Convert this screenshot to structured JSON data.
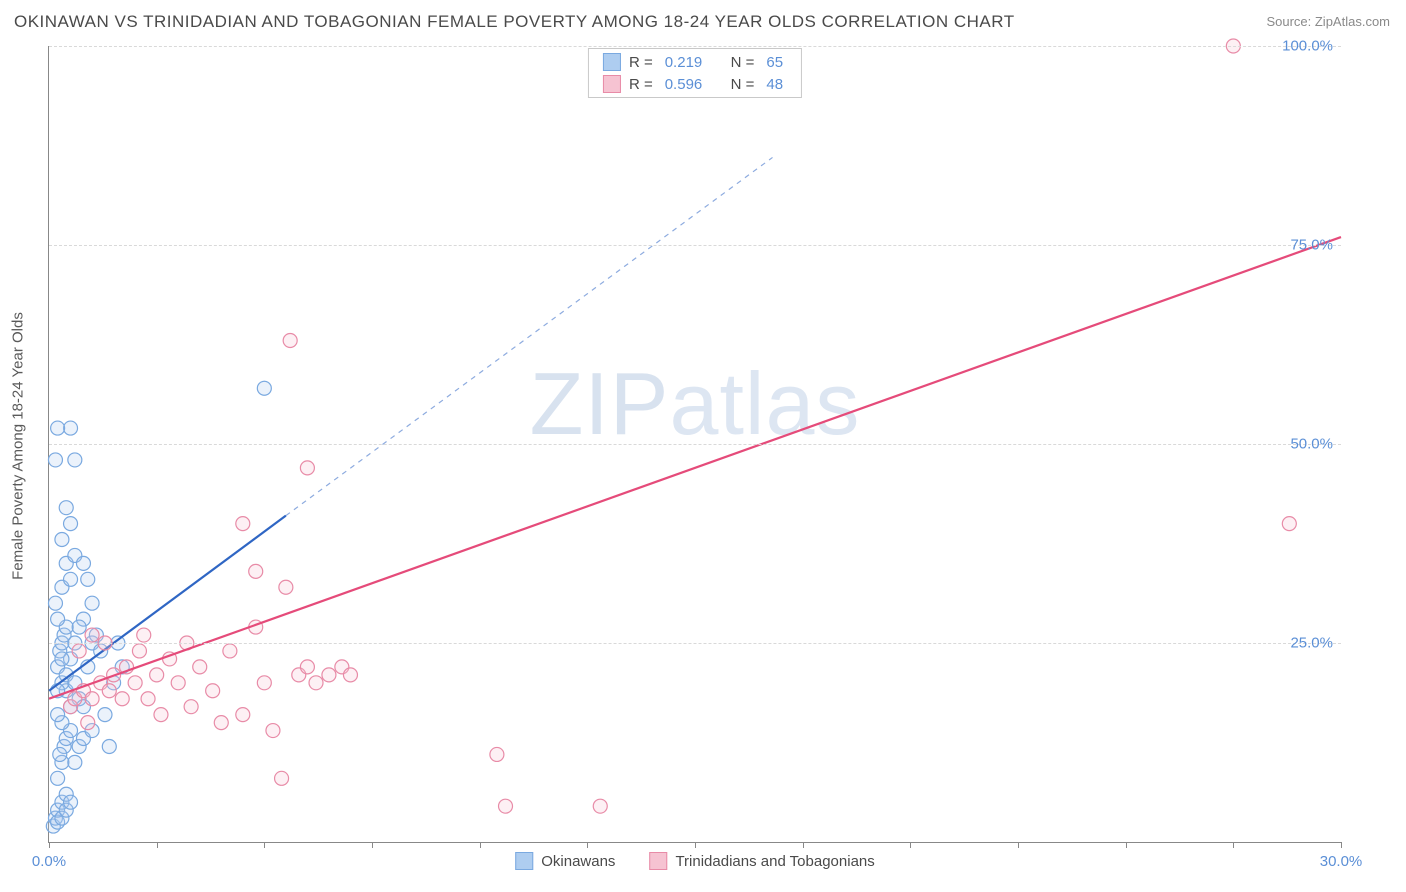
{
  "title": "OKINAWAN VS TRINIDADIAN AND TOBAGONIAN FEMALE POVERTY AMONG 18-24 YEAR OLDS CORRELATION CHART",
  "source": "Source: ZipAtlas.com",
  "watermark_a": "ZIP",
  "watermark_b": "atlas",
  "chart": {
    "type": "scatter",
    "xlim": [
      0,
      30
    ],
    "ylim": [
      0,
      100
    ],
    "xlabel": "",
    "ylabel": "Female Poverty Among 18-24 Year Olds",
    "background_color": "#ffffff",
    "grid_color": "#d9d9d9",
    "tick_color": "#5b8fd6",
    "xtick_positions": [
      0,
      2.5,
      5,
      7.5,
      10,
      12.5,
      15,
      17.5,
      20,
      22.5,
      25,
      27.5,
      30
    ],
    "xtick_labels": {
      "0": "0.0%",
      "30": "30.0%"
    },
    "ytick_positions": [
      25,
      50,
      75,
      100
    ],
    "ytick_labels": {
      "25": "25.0%",
      "50": "50.0%",
      "75": "75.0%",
      "100": "100.0%"
    },
    "marker_radius": 7,
    "marker_stroke_width": 1.2,
    "marker_fill_opacity": 0.25,
    "series": [
      {
        "name": "Okinawans",
        "color_stroke": "#7aa9e0",
        "color_fill": "#aecdf0",
        "line_color": "#2f66c4",
        "r_label": "R =",
        "r_value": "0.219",
        "n_label": "N =",
        "n_value": "65",
        "trend": {
          "x1": 0,
          "y1": 19,
          "x2": 5.5,
          "y2": 41,
          "dash_to_x": 16.8,
          "dash_to_y": 86
        },
        "points": [
          [
            0.1,
            2
          ],
          [
            0.15,
            3
          ],
          [
            0.2,
            2.5
          ],
          [
            0.2,
            4
          ],
          [
            0.3,
            3
          ],
          [
            0.3,
            5
          ],
          [
            0.4,
            4
          ],
          [
            0.4,
            6
          ],
          [
            0.5,
            5
          ],
          [
            0.2,
            8
          ],
          [
            0.3,
            10
          ],
          [
            0.35,
            12
          ],
          [
            0.25,
            11
          ],
          [
            0.4,
            13
          ],
          [
            0.5,
            14
          ],
          [
            0.3,
            15
          ],
          [
            0.2,
            16
          ],
          [
            0.6,
            10
          ],
          [
            0.7,
            12
          ],
          [
            0.8,
            13
          ],
          [
            0.5,
            17
          ],
          [
            0.4,
            19
          ],
          [
            0.3,
            20
          ],
          [
            0.2,
            22
          ],
          [
            0.25,
            24
          ],
          [
            0.3,
            25
          ],
          [
            0.35,
            26
          ],
          [
            0.4,
            27
          ],
          [
            0.2,
            28
          ],
          [
            0.15,
            30
          ],
          [
            0.3,
            32
          ],
          [
            0.5,
            33
          ],
          [
            0.4,
            35
          ],
          [
            0.6,
            36
          ],
          [
            0.3,
            38
          ],
          [
            0.5,
            40
          ],
          [
            0.4,
            42
          ],
          [
            0.6,
            48
          ],
          [
            0.5,
            52
          ],
          [
            0.8,
            28
          ],
          [
            0.9,
            22
          ],
          [
            1.0,
            25
          ],
          [
            1.1,
            26
          ],
          [
            1.2,
            24
          ],
          [
            1.0,
            14
          ],
          [
            1.3,
            16
          ],
          [
            1.4,
            12
          ],
          [
            1.5,
            20
          ],
          [
            1.0,
            30
          ],
          [
            0.15,
            48
          ],
          [
            0.2,
            52
          ],
          [
            1.6,
            25
          ],
          [
            1.7,
            22
          ],
          [
            0.8,
            35
          ],
          [
            0.9,
            33
          ],
          [
            5.0,
            57
          ],
          [
            0.6,
            25
          ],
          [
            0.7,
            27
          ],
          [
            0.5,
            23
          ],
          [
            0.4,
            21
          ],
          [
            0.3,
            23
          ],
          [
            0.2,
            19
          ],
          [
            0.6,
            20
          ],
          [
            0.7,
            18
          ],
          [
            0.8,
            17
          ]
        ]
      },
      {
        "name": "Trinidadians and Tobagonians",
        "color_stroke": "#e88ba7",
        "color_fill": "#f6c3d2",
        "line_color": "#e54b7a",
        "r_label": "R =",
        "r_value": "0.596",
        "n_label": "N =",
        "n_value": "48",
        "trend": {
          "x1": 0,
          "y1": 18,
          "x2": 30,
          "y2": 76
        },
        "points": [
          [
            0.5,
            17
          ],
          [
            0.6,
            18
          ],
          [
            0.8,
            19
          ],
          [
            1.0,
            18
          ],
          [
            1.2,
            20
          ],
          [
            1.4,
            19
          ],
          [
            1.5,
            21
          ],
          [
            1.7,
            18
          ],
          [
            1.8,
            22
          ],
          [
            2.0,
            20
          ],
          [
            2.1,
            24
          ],
          [
            2.3,
            18
          ],
          [
            2.5,
            21
          ],
          [
            2.6,
            16
          ],
          [
            2.8,
            23
          ],
          [
            3.0,
            20
          ],
          [
            3.2,
            25
          ],
          [
            3.3,
            17
          ],
          [
            3.5,
            22
          ],
          [
            3.8,
            19
          ],
          [
            4.0,
            15
          ],
          [
            4.2,
            24
          ],
          [
            4.5,
            16
          ],
          [
            4.8,
            27
          ],
          [
            5.0,
            20
          ],
          [
            5.2,
            14
          ],
          [
            5.4,
            8
          ],
          [
            5.5,
            32
          ],
          [
            5.8,
            21
          ],
          [
            6.0,
            22
          ],
          [
            6.2,
            20
          ],
          [
            6.5,
            21
          ],
          [
            6.8,
            22
          ],
          [
            7.0,
            21
          ],
          [
            4.5,
            40
          ],
          [
            4.8,
            34
          ],
          [
            6.0,
            47
          ],
          [
            5.6,
            63
          ],
          [
            10.4,
            11
          ],
          [
            10.6,
            4.5
          ],
          [
            12.8,
            4.5
          ],
          [
            27.5,
            100
          ],
          [
            28.8,
            40
          ],
          [
            1.0,
            26
          ],
          [
            1.3,
            25
          ],
          [
            0.7,
            24
          ],
          [
            0.9,
            15
          ],
          [
            2.2,
            26
          ]
        ]
      }
    ]
  }
}
